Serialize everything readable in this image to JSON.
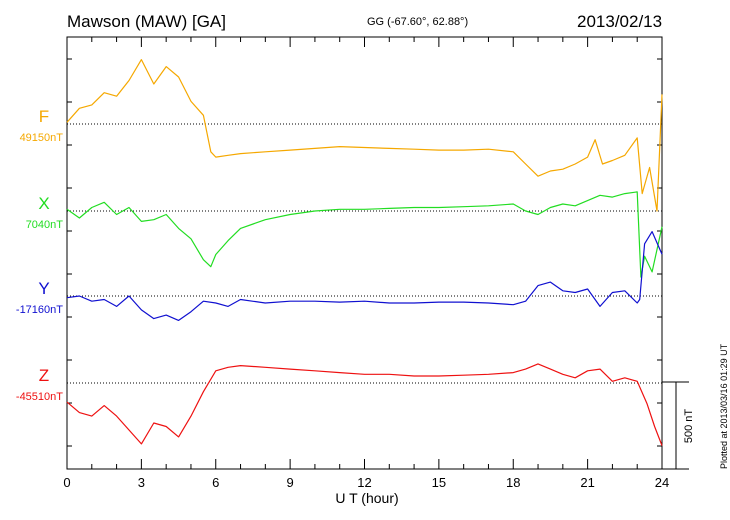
{
  "header": {
    "title": "Mawson (MAW)  [GA]",
    "coords": "GG (-67.60°,  62.88°)",
    "date": "2013/02/13"
  },
  "footer": {
    "plotted": "Plotted at 2013/03/16 01:29 UT"
  },
  "chart_data": {
    "type": "line",
    "title": "Mawson (MAW)  [GA]",
    "xlabel": "U T (hour)",
    "xlim": [
      0,
      24
    ],
    "x_ticks": [
      0,
      3,
      6,
      9,
      12,
      15,
      18,
      21,
      24
    ],
    "scale_bar_label": "500 nT",
    "scale_bar_nT": 500,
    "grid": false,
    "series": [
      {
        "name": "F",
        "baseline_label": "49150nT",
        "baseline_nT": 49150,
        "color": "#f5a800",
        "x": [
          0,
          0.5,
          1,
          1.5,
          2,
          2.5,
          3,
          3.5,
          4,
          4.5,
          5,
          5.5,
          5.8,
          6,
          6.5,
          7,
          8,
          9,
          10,
          11,
          12,
          13,
          14,
          15,
          16,
          17,
          18,
          18.5,
          19,
          19.5,
          20,
          20.5,
          21,
          21.3,
          21.6,
          22,
          22.5,
          23,
          23.2,
          23.5,
          23.8,
          24
        ],
        "y": [
          49160,
          49240,
          49260,
          49330,
          49310,
          49400,
          49520,
          49380,
          49480,
          49420,
          49280,
          49200,
          48990,
          48960,
          48970,
          48980,
          48990,
          49000,
          49010,
          49020,
          49015,
          49010,
          49005,
          49000,
          49000,
          49005,
          48990,
          48920,
          48850,
          48880,
          48890,
          48920,
          48960,
          49060,
          48920,
          48940,
          48970,
          49070,
          48750,
          48900,
          48650,
          49320
        ]
      },
      {
        "name": "X",
        "baseline_label": "7040nT",
        "baseline_nT": 7040,
        "color": "#22dd22",
        "x": [
          0,
          0.5,
          1,
          1.5,
          2,
          2.5,
          3,
          3.5,
          4,
          4.5,
          5,
          5.5,
          5.8,
          6,
          6.5,
          7,
          8,
          9,
          10,
          11,
          12,
          13,
          14,
          15,
          16,
          17,
          18,
          18.5,
          19,
          19.5,
          20,
          20.5,
          21,
          21.5,
          22,
          22.5,
          23,
          23.15,
          23.3,
          23.6,
          24
        ],
        "y": [
          7050,
          7000,
          7060,
          7090,
          7020,
          7060,
          6980,
          6990,
          7020,
          6940,
          6880,
          6760,
          6720,
          6790,
          6870,
          6940,
          6990,
          7020,
          7040,
          7050,
          7050,
          7055,
          7060,
          7060,
          7065,
          7070,
          7080,
          7040,
          7020,
          7060,
          7080,
          7070,
          7100,
          7130,
          7120,
          7140,
          7150,
          6660,
          6780,
          6690,
          6950
        ]
      },
      {
        "name": "Y",
        "baseline_label": "-17160nT",
        "baseline_nT": -17160,
        "color": "#1010d0",
        "x": [
          0,
          0.5,
          1,
          1.5,
          2,
          2.5,
          3,
          3.5,
          4,
          4.5,
          5,
          5.5,
          6,
          6.5,
          7,
          8,
          9,
          10,
          11,
          12,
          13,
          14,
          15,
          16,
          17,
          18,
          18.5,
          19,
          19.5,
          20,
          20.5,
          21,
          21.5,
          22,
          22.5,
          23,
          23.1,
          23.3,
          23.6,
          24
        ],
        "y": [
          -17170,
          -17160,
          -17190,
          -17180,
          -17220,
          -17160,
          -17240,
          -17290,
          -17270,
          -17300,
          -17250,
          -17190,
          -17200,
          -17220,
          -17180,
          -17200,
          -17190,
          -17190,
          -17195,
          -17190,
          -17200,
          -17200,
          -17195,
          -17195,
          -17200,
          -17210,
          -17190,
          -17100,
          -17080,
          -17130,
          -17140,
          -17120,
          -17220,
          -17140,
          -17130,
          -17200,
          -17180,
          -16860,
          -16790,
          -16920
        ]
      },
      {
        "name": "Z",
        "baseline_label": "-45510nT",
        "baseline_nT": -45510,
        "color": "#ee1111",
        "x": [
          0,
          0.5,
          1,
          1.5,
          2,
          2.5,
          3,
          3.5,
          4,
          4.5,
          5,
          5.5,
          6,
          6.5,
          7,
          8,
          9,
          10,
          11,
          12,
          13,
          14,
          15,
          16,
          17,
          18,
          18.5,
          19,
          19.5,
          20,
          20.5,
          21,
          21.5,
          22,
          22.5,
          23,
          23.4,
          23.7,
          24
        ],
        "y": [
          -45620,
          -45680,
          -45700,
          -45640,
          -45700,
          -45780,
          -45860,
          -45740,
          -45760,
          -45820,
          -45700,
          -45560,
          -45440,
          -45420,
          -45410,
          -45420,
          -45430,
          -45440,
          -45450,
          -45460,
          -45460,
          -45470,
          -45470,
          -45465,
          -45460,
          -45450,
          -45430,
          -45400,
          -45430,
          -45460,
          -45480,
          -45440,
          -45430,
          -45500,
          -45480,
          -45500,
          -45630,
          -45760,
          -45870
        ]
      }
    ]
  }
}
